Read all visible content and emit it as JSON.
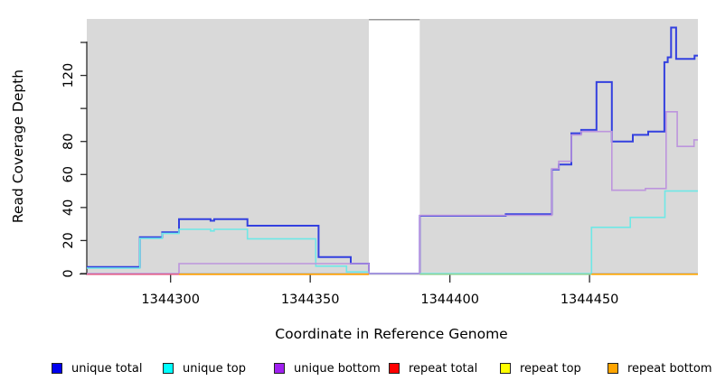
{
  "figure": {
    "background": "#ffffff",
    "plot_background_shaded": "#d9d9d9",
    "axis_color": "#2b2b2b",
    "gap_top_border_color": "#999999"
  },
  "y_axis": {
    "label": "Read Coverage Depth",
    "range": [
      0,
      154
    ],
    "ticks": [
      {
        "value": 0,
        "label": "0"
      },
      {
        "value": 20,
        "label": "20"
      },
      {
        "value": 40,
        "label": "40"
      },
      {
        "value": 60,
        "label": "60"
      },
      {
        "value": 80,
        "label": "80"
      },
      {
        "value": 100,
        "label": ""
      },
      {
        "value": 120,
        "label": "120"
      },
      {
        "value": 140,
        "label": ""
      }
    ]
  },
  "x_axis": {
    "label": "Coordinate in Reference Genome",
    "range": [
      1344270,
      1344488.8
    ],
    "ticks": [
      {
        "value": 1344300,
        "label": "1344300"
      },
      {
        "value": 1344350,
        "label": "1344350"
      },
      {
        "value": 1344400,
        "label": "1344400"
      },
      {
        "value": 1344450,
        "label": "1344450"
      }
    ]
  },
  "shaded_regions": [
    {
      "from": 1344270,
      "to": 1344371
    },
    {
      "from": 1344389.2,
      "to": 1344488.8
    }
  ],
  "chart_data": {
    "type": "step-line",
    "title": "",
    "xlabel": "Coordinate in Reference Genome",
    "ylabel": "Read Coverage Depth",
    "xlim": [
      1344270,
      1344489
    ],
    "ylim": [
      0,
      154
    ],
    "series": [
      {
        "name": "unique total",
        "color": "#3340df",
        "width": 2,
        "end_x": 1344488.8,
        "steps": [
          [
            1344270,
            4
          ],
          [
            1344289,
            22
          ],
          [
            1344297,
            25
          ],
          [
            1344303,
            33
          ],
          [
            1344314.3,
            32
          ],
          [
            1344315.6,
            33
          ],
          [
            1344327.5,
            29
          ],
          [
            1344353,
            10
          ],
          [
            1344364.5,
            6
          ],
          [
            1344371,
            0
          ],
          [
            1344389.2,
            35
          ],
          [
            1344420,
            36
          ],
          [
            1344436.5,
            63
          ],
          [
            1344439,
            66
          ],
          [
            1344443.5,
            85
          ],
          [
            1344447,
            87
          ],
          [
            1344452.5,
            116
          ],
          [
            1344458,
            80
          ],
          [
            1344465.5,
            84
          ],
          [
            1344471,
            86
          ],
          [
            1344476.8,
            128
          ],
          [
            1344478,
            131
          ],
          [
            1344479.2,
            149
          ],
          [
            1344481,
            130
          ],
          [
            1344487.6,
            132
          ]
        ]
      },
      {
        "name": "unique top",
        "color": "#6fe8e6",
        "width": 1.6,
        "end_x": 1344488.8,
        "steps": [
          [
            1344270,
            3.3
          ],
          [
            1344289,
            21.3
          ],
          [
            1344297,
            24.3
          ],
          [
            1344303,
            26.8
          ],
          [
            1344314.3,
            25.8
          ],
          [
            1344315.6,
            26.8
          ],
          [
            1344327.5,
            21
          ],
          [
            1344352,
            4.5
          ],
          [
            1344363,
            1
          ],
          [
            1344371,
            0
          ],
          [
            1344450.7,
            28
          ],
          [
            1344464.6,
            34
          ],
          [
            1344477,
            50
          ]
        ]
      },
      {
        "name": "unique bottom",
        "color": "#bd95dd",
        "width": 1.6,
        "end_x": 1344488.8,
        "steps": [
          [
            1344270,
            0
          ],
          [
            1344303,
            6
          ],
          [
            1344371,
            0
          ],
          [
            1344389.2,
            35.3
          ],
          [
            1344436.5,
            63.5
          ],
          [
            1344439,
            68
          ],
          [
            1344443.5,
            84
          ],
          [
            1344447,
            86
          ],
          [
            1344458,
            50.5
          ],
          [
            1344470,
            51.5
          ],
          [
            1344477.4,
            98
          ],
          [
            1344481.4,
            77
          ],
          [
            1344487.4,
            81
          ]
        ]
      },
      {
        "name": "repeat total",
        "color": "#e0628c",
        "width": 1.6,
        "end_x": 1344488.8,
        "steps": [
          [
            1344270,
            0
          ]
        ]
      },
      {
        "name": "repeat top",
        "color": "#ffff00",
        "width": 1.6,
        "end_x": 1344488.8,
        "steps": [
          [
            1344270,
            0
          ]
        ]
      },
      {
        "name": "repeat bottom",
        "color": "#ffa500",
        "width": 1.6,
        "end_x": 1344488.8,
        "steps": [
          [
            1344270,
            0
          ]
        ]
      }
    ],
    "zero_line_rendered_segments": [
      {
        "name": "repeat-total-zero-line",
        "color": "#e0628c",
        "from": 1344270,
        "to": 1344371
      },
      {
        "name": "zero-line-blend-green",
        "color": "#8fd49a",
        "from": 1344389.2,
        "to": 1344450.7
      },
      {
        "name": "repeat-bottom-zero-line-left",
        "color": "#ffa500",
        "from": 1344303,
        "to": 1344371
      },
      {
        "name": "repeat-bottom-zero-line-right",
        "color": "#ffa500",
        "from": 1344450.7,
        "to": 1344488.8
      }
    ]
  },
  "legend": {
    "items": [
      {
        "label": "unique total",
        "color": "#0000ee"
      },
      {
        "label": "unique top",
        "color": "#00ffff"
      },
      {
        "label": "unique bottom",
        "color": "#a020f0"
      },
      {
        "label": "repeat total",
        "color": "#ff0000"
      },
      {
        "label": "repeat top",
        "color": "#ffff00"
      },
      {
        "label": "repeat bottom",
        "color": "#ffa500"
      }
    ]
  }
}
